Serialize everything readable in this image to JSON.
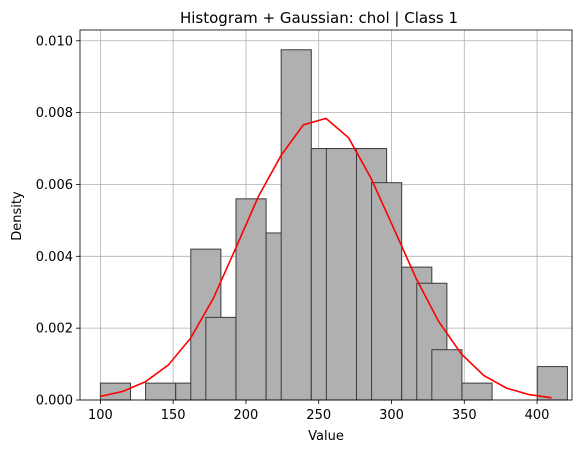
{
  "chart_data": {
    "type": "bar",
    "title": "Histogram + Gaussian: chol | Class 1",
    "xlabel": "Value",
    "ylabel": "Density",
    "xlim": [
      86,
      424
    ],
    "ylim": [
      0,
      0.0103
    ],
    "grid": true,
    "x_ticks": [
      100,
      150,
      200,
      250,
      300,
      350,
      400
    ],
    "y_ticks": [
      0.0,
      0.002,
      0.004,
      0.006,
      0.008,
      0.01
    ],
    "y_tick_labels": [
      "0.000",
      "0.002",
      "0.004",
      "0.006",
      "0.008",
      "0.010"
    ],
    "bin_edges": [
      100,
      110.35,
      120.7,
      131.05,
      141.4,
      151.75,
      162.1,
      172.45,
      182.8,
      193.15,
      203.5,
      213.85,
      224.2,
      234.55,
      244.9,
      255.25,
      265.6,
      275.95,
      286.3,
      296.65,
      307,
      317.35,
      327.7,
      338.05,
      348.4,
      358.75,
      369.1,
      379.45,
      389.8,
      400.15,
      410.5
    ],
    "series": [
      {
        "kind": "histogram",
        "values": [
          0.00047,
          0,
          0.00047,
          0.00047,
          0.0042,
          0.0023,
          0.0056,
          0.00465,
          0.00975,
          0.007,
          0.007,
          0.007,
          0.00605,
          0.0037,
          0.00325,
          0.0014,
          0.00047,
          0,
          0,
          0.00093
        ],
        "bin_starts": [
          100,
          120.7,
          131.05,
          151.75,
          162.1,
          172.45,
          193.15,
          213.85,
          224.2,
          244.9,
          255.25,
          275.95,
          286.3,
          307,
          317.35,
          327.7,
          348.4,
          358.75,
          379.45,
          400.15
        ],
        "bin_width": 20.7,
        "color": "#b0b0b0",
        "edge_color": "#3a3a3a"
      },
      {
        "kind": "line",
        "color": "#ff0000",
        "x": [
          100,
          115.5,
          131,
          146.5,
          162,
          177.5,
          193,
          208.5,
          224,
          239.5,
          255,
          270.5,
          286,
          301.5,
          317,
          332.5,
          348,
          363.5,
          379,
          394.5,
          410
        ],
        "y": [
          0.0001,
          0.00024,
          0.00051,
          0.00097,
          0.00172,
          0.00282,
          0.00423,
          0.00566,
          0.0068,
          0.00766,
          0.00784,
          0.0073,
          0.00617,
          0.00478,
          0.00338,
          0.00218,
          0.00128,
          0.00068,
          0.00033,
          0.00015,
          6e-05
        ]
      }
    ]
  }
}
